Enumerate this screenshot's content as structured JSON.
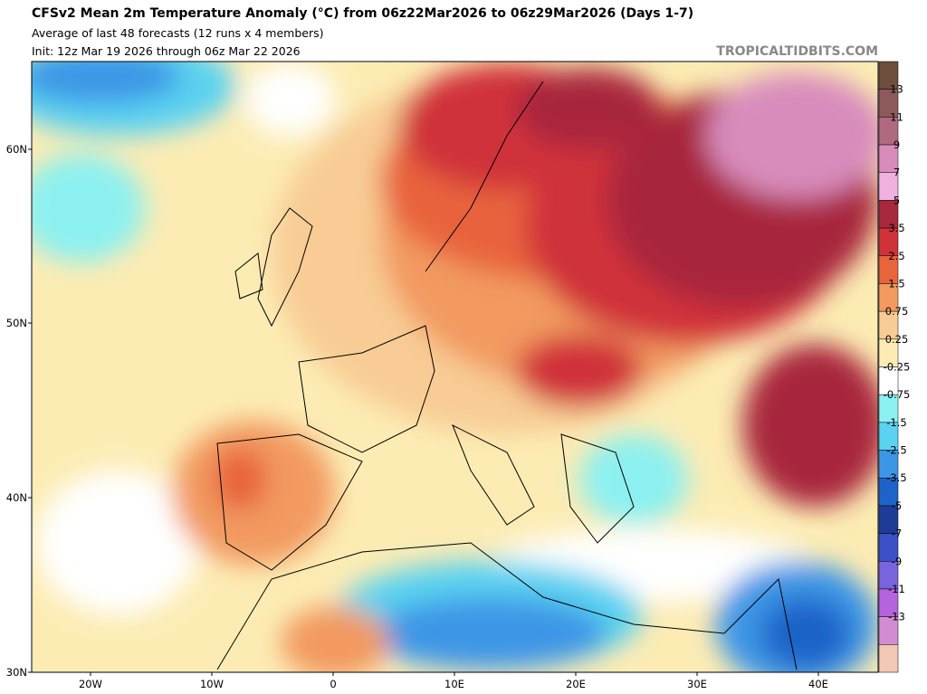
{
  "header": {
    "title": "CFSv2 Mean 2m Temperature Anomaly (°C) from 06z22Mar2026 to 06z29Mar2026 (Days 1-7)",
    "subtitle": "Average of last 48 forecasts (12 runs x 4 members)",
    "init": "Init: 12z Mar 19 2026 through 06z Mar 22 2026",
    "watermark": "TROPICALTIDBITS.COM"
  },
  "map": {
    "lat_labels": [
      "60N",
      "50N",
      "40N",
      "30N"
    ],
    "lon_labels": [
      "20W",
      "10W",
      "0",
      "10E",
      "20E",
      "30E",
      "40E"
    ]
  },
  "colorbar": {
    "levels": [
      13,
      11,
      9,
      7,
      5,
      3.5,
      2.5,
      1.5,
      0.75,
      0.25,
      -0.25,
      -0.75,
      -1.5,
      -2.5,
      -3.5,
      -5,
      -7,
      -9,
      -11,
      -13
    ],
    "colors": [
      "#6e4e3c",
      "#8c5a5a",
      "#b06a80",
      "#d88cbc",
      "#f0b0e0",
      "#a8283e",
      "#d0323a",
      "#e8643c",
      "#f29a60",
      "#f8cc94",
      "#fcecb4",
      "#ffffff",
      "#8cf0f0",
      "#5ad2f0",
      "#3c96e6",
      "#1e64c8",
      "#1e3c96",
      "#3c50c8",
      "#7864dc",
      "#b464dc",
      "#d28cd2",
      "#f0c8b4"
    ]
  }
}
